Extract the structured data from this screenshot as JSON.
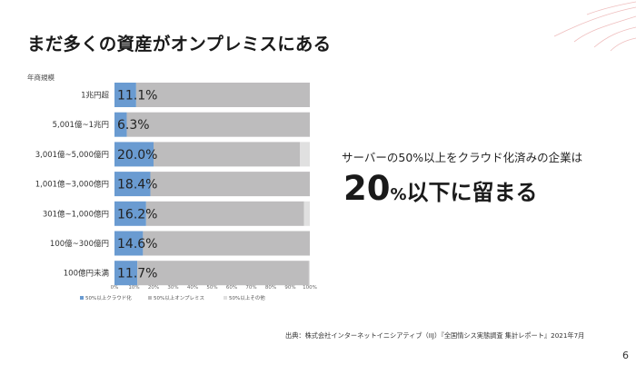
{
  "slide": {
    "title": "まだ多くの資産がオンプレミスにある",
    "scale_label": "年商規模",
    "lead": "サーバーの50%以上をクラウド化済みの企業は",
    "headline_number": "20",
    "headline_percent": "%",
    "headline_rest": "以下に留まる",
    "source": "出典：株式会社インターネットイニシアティブ（IIJ）『全国情シス実態調査 集計レポート』2021年7月",
    "page_number": "6"
  },
  "colors": {
    "cloud": "#6a9bd1",
    "onprem": "#bdbcbd",
    "other": "#e0e0e0",
    "deco": "#e8a3a3"
  },
  "chart_data": {
    "type": "bar",
    "orientation": "horizontal",
    "stacked": true,
    "categories": [
      "1兆円超",
      "5,001億~1兆円",
      "3,001億~5,000億円",
      "1,001億~3,000億円",
      "301億~1,000億円",
      "100億~300億円",
      "100億円未満"
    ],
    "series": [
      {
        "name": "50%以上クラウド化",
        "values": [
          11.1,
          6.3,
          20.0,
          18.4,
          16.2,
          14.6,
          11.7
        ]
      },
      {
        "name": "50%以上オンプレミス",
        "values": [
          88.9,
          93.7,
          75.0,
          81.6,
          80.8,
          85.4,
          87.8
        ]
      },
      {
        "name": "50%以上その他",
        "values": [
          0.0,
          0.0,
          5.0,
          0.0,
          3.0,
          0.0,
          0.5
        ]
      }
    ],
    "data_labels": [
      "11.1%",
      "6.3%",
      "20.0%",
      "18.4%",
      "16.2%",
      "14.6%",
      "11.7%"
    ],
    "xlim": [
      0,
      100
    ],
    "x_ticks": [
      "0%",
      "10%",
      "20%",
      "30%",
      "40%",
      "50%",
      "60%",
      "70%",
      "80%",
      "90%",
      "100%"
    ],
    "legend_position": "bottom-left",
    "grid": false
  }
}
